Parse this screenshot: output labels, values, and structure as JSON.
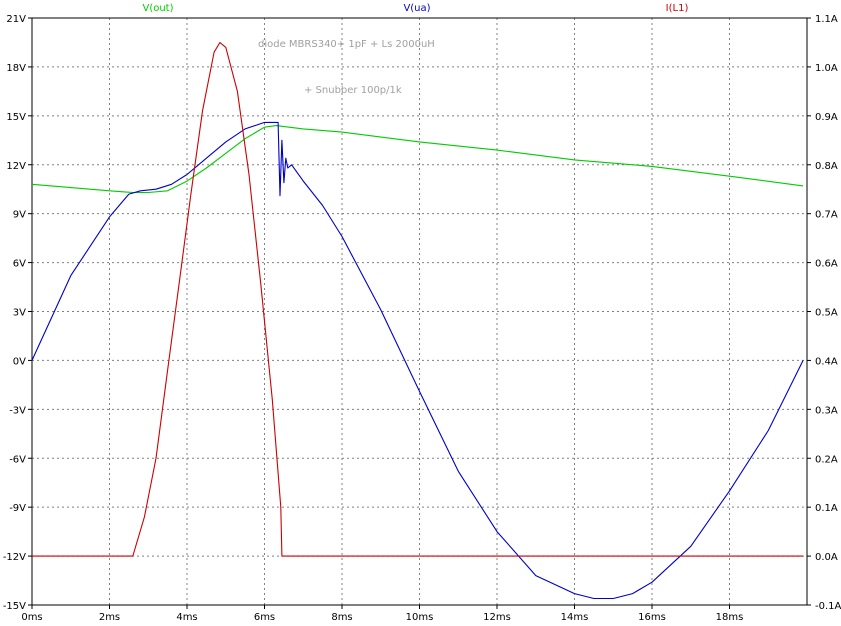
{
  "chart_data": {
    "type": "line",
    "title": "",
    "annotations": [
      "diode  MBRS340+ 1pF + Ls 2000uH",
      "+ Snubber 100p/1k"
    ],
    "x_axis": {
      "ticks": [
        "0ms",
        "2ms",
        "4ms",
        "6ms",
        "8ms",
        "10ms",
        "12ms",
        "14ms",
        "16ms",
        "18ms"
      ],
      "range_ms": [
        0,
        20
      ],
      "unit": "ms"
    },
    "y_left": {
      "ticks": [
        "-15V",
        "-12V",
        "-9V",
        "-6V",
        "-3V",
        "0V",
        "3V",
        "6V",
        "9V",
        "12V",
        "15V",
        "18V",
        "21V"
      ],
      "range": [
        -15,
        21
      ],
      "unit": "V"
    },
    "y_right": {
      "ticks": [
        "-0.1A",
        "0.0A",
        "0.1A",
        "0.2A",
        "0.3A",
        "0.4A",
        "0.5A",
        "0.6A",
        "0.7A",
        "0.8A",
        "0.9A",
        "1.0A",
        "1.1A"
      ],
      "range": [
        -0.1,
        1.1
      ],
      "unit": "A"
    },
    "grid": true,
    "series": [
      {
        "name": "V(out)",
        "color": "#00cc00",
        "axis": "left",
        "x": [
          0,
          1,
          2,
          2.6,
          3,
          3.5,
          4,
          4.5,
          5,
          5.5,
          6,
          6.3,
          7,
          8,
          10,
          12,
          14,
          16,
          18,
          19.9
        ],
        "y": [
          10.8,
          10.6,
          10.4,
          10.3,
          10.3,
          10.4,
          11.0,
          11.8,
          12.7,
          13.6,
          14.3,
          14.4,
          14.2,
          14.0,
          13.4,
          12.9,
          12.3,
          11.9,
          11.3,
          10.7
        ]
      },
      {
        "name": "V(ua)",
        "color": "#0000cc",
        "axis": "left",
        "x": [
          0,
          1,
          2,
          2.5,
          2.8,
          3.2,
          3.6,
          4,
          4.5,
          5,
          5.5,
          6,
          6.35,
          6.4,
          6.45,
          6.5,
          6.55,
          6.6,
          6.7,
          7,
          7.5,
          8,
          9,
          10,
          11,
          12,
          13,
          14,
          14.5,
          15,
          15.5,
          16,
          17,
          18,
          19,
          19.9
        ],
        "y": [
          0,
          5.2,
          8.8,
          10.2,
          10.4,
          10.5,
          10.8,
          11.4,
          12.4,
          13.4,
          14.2,
          14.6,
          14.6,
          10.1,
          13.5,
          10.9,
          12.4,
          11.8,
          12.0,
          11.0,
          9.5,
          7.6,
          3.1,
          -1.9,
          -6.8,
          -10.5,
          -13.2,
          -14.3,
          -14.6,
          -14.6,
          -14.3,
          -13.6,
          -11.4,
          -8.0,
          -4.3,
          0.0
        ]
      },
      {
        "name": "I(L1)",
        "color": "#cc0000",
        "axis": "right",
        "x": [
          0,
          2.6,
          2.9,
          3.2,
          3.5,
          3.8,
          4.1,
          4.4,
          4.7,
          4.85,
          5.0,
          5.3,
          5.6,
          5.9,
          6.2,
          6.42,
          6.45,
          8,
          12,
          16,
          19.9
        ],
        "y": [
          0.0,
          0.0,
          0.08,
          0.2,
          0.38,
          0.56,
          0.74,
          0.91,
          1.03,
          1.05,
          1.04,
          0.95,
          0.78,
          0.56,
          0.32,
          0.1,
          0.0,
          0.0,
          0.0,
          0.0,
          0.0
        ]
      }
    ]
  }
}
